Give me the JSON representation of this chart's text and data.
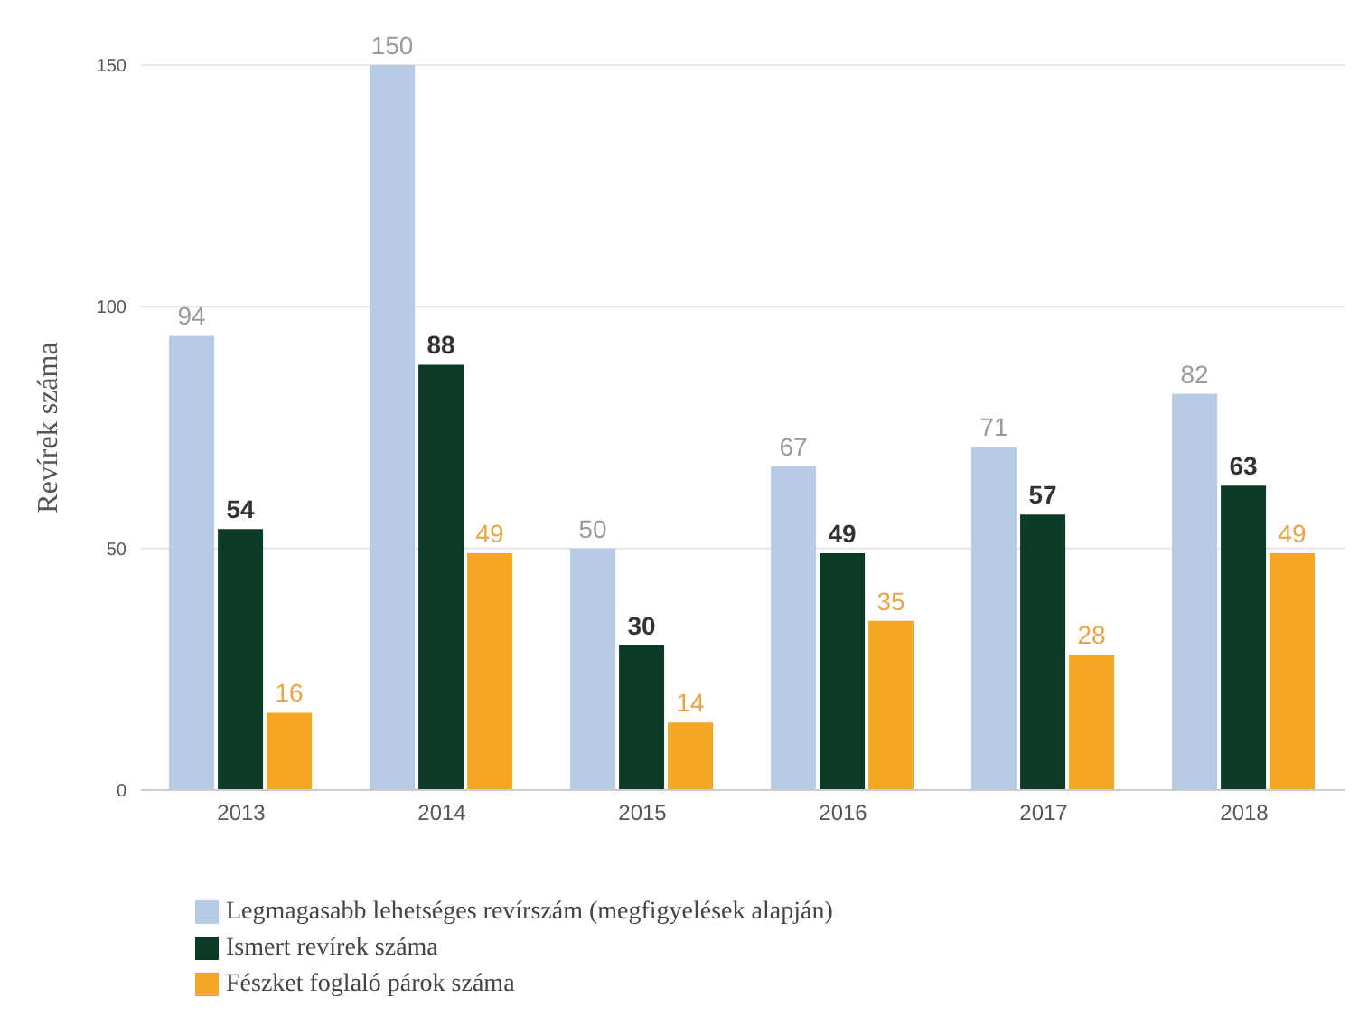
{
  "chart_data": {
    "type": "bar",
    "ylabel": "Revírek száma",
    "categories": [
      "2013",
      "2014",
      "2015",
      "2016",
      "2017",
      "2018"
    ],
    "series": [
      {
        "name": "Legmagasabb lehetséges revírszám (megfigyelések alapján)",
        "color": "#b7cbe6",
        "values": [
          94,
          150,
          50,
          67,
          71,
          82
        ]
      },
      {
        "name": "Ismert revírek száma",
        "color": "#0c3b25",
        "values": [
          54,
          88,
          30,
          49,
          57,
          63
        ]
      },
      {
        "name": "Fészket foglaló párok száma",
        "color": "#f5a623",
        "values": [
          16,
          49,
          14,
          35,
          28,
          49
        ]
      }
    ],
    "ylim": [
      0,
      150
    ],
    "yticks": [
      0,
      50,
      100,
      150
    ],
    "grid": "y",
    "legend": "bottom",
    "data_labels": true
  }
}
